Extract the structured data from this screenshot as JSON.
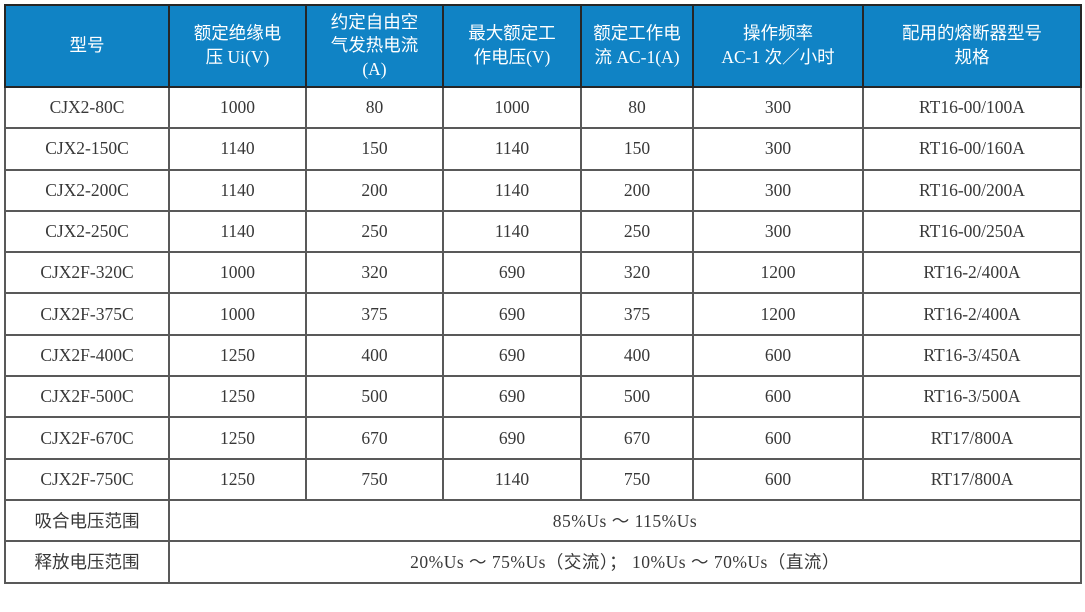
{
  "colors": {
    "header_bg": "#1083C5",
    "header_text": "#FFFFFF",
    "grid_line": "#595959",
    "outer_border": "#3A3A3A",
    "body_text": "#383838"
  },
  "table": {
    "header": {
      "columns": [
        "型号",
        "额定绝缘电\n压 Ui(V)",
        "约定自由空\n气发热电流\n(A)",
        "最大额定工\n作电压(V)",
        "额定工作电\n流 AC-1(A)",
        "操作频率\nAC-1 次／小时",
        "配用的熔断器型号\n规格"
      ]
    },
    "rows": [
      [
        "CJX2-80C",
        "1000",
        "80",
        "1000",
        "80",
        "300",
        "RT16-00/100A"
      ],
      [
        "CJX2-150C",
        "1140",
        "150",
        "1140",
        "150",
        "300",
        "RT16-00/160A"
      ],
      [
        "CJX2-200C",
        "1140",
        "200",
        "1140",
        "200",
        "300",
        "RT16-00/200A"
      ],
      [
        "CJX2-250C",
        "1140",
        "250",
        "1140",
        "250",
        "300",
        "RT16-00/250A"
      ],
      [
        "CJX2F-320C",
        "1000",
        "320",
        "690",
        "320",
        "1200",
        "RT16-2/400A"
      ],
      [
        "CJX2F-375C",
        "1000",
        "375",
        "690",
        "375",
        "1200",
        "RT16-2/400A"
      ],
      [
        "CJX2F-400C",
        "1250",
        "400",
        "690",
        "400",
        "600",
        "RT16-3/450A"
      ],
      [
        "CJX2F-500C",
        "1250",
        "500",
        "690",
        "500",
        "600",
        "RT16-3/500A"
      ],
      [
        "CJX2F-670C",
        "1250",
        "670",
        "690",
        "670",
        "600",
        "RT17/800A"
      ],
      [
        "CJX2F-750C",
        "1250",
        "750",
        "1140",
        "750",
        "600",
        "RT17/800A"
      ]
    ],
    "footer_rows": [
      {
        "label": "吸合电压范围",
        "value": "85%Us ～ 115%Us"
      },
      {
        "label": "释放电压范围",
        "value": "20%Us ～ 75%Us（交流）； 10%Us ～ 70%Us（直流）"
      }
    ]
  }
}
